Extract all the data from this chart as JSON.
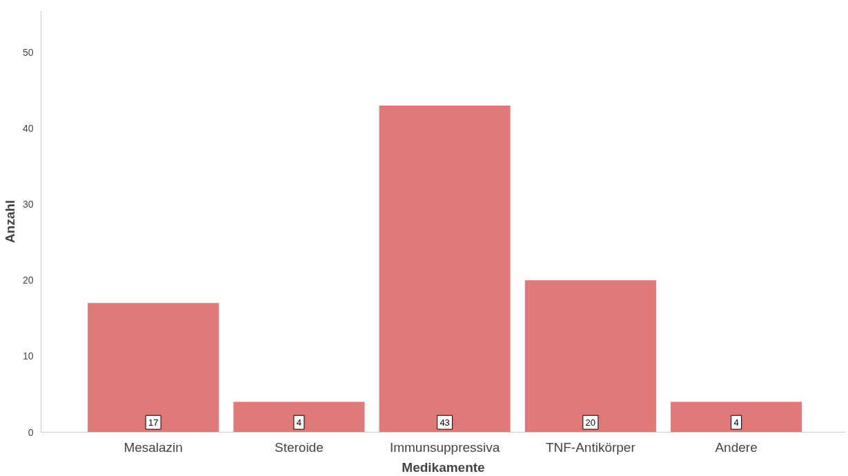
{
  "chart_data": {
    "type": "bar",
    "xlabel": "Medikamente",
    "ylabel": "Anzahl",
    "categories": [
      "Mesalazin",
      "Steroide",
      "Immunsuppressiva",
      "TNF-Antikörper",
      "Andere"
    ],
    "values": [
      17,
      4,
      43,
      20,
      4
    ],
    "color": "#e07877",
    "ylim": [
      0,
      55.5
    ],
    "yticks": [
      0,
      10,
      20,
      30,
      40,
      50
    ],
    "grid": false,
    "data_labels": true
  }
}
